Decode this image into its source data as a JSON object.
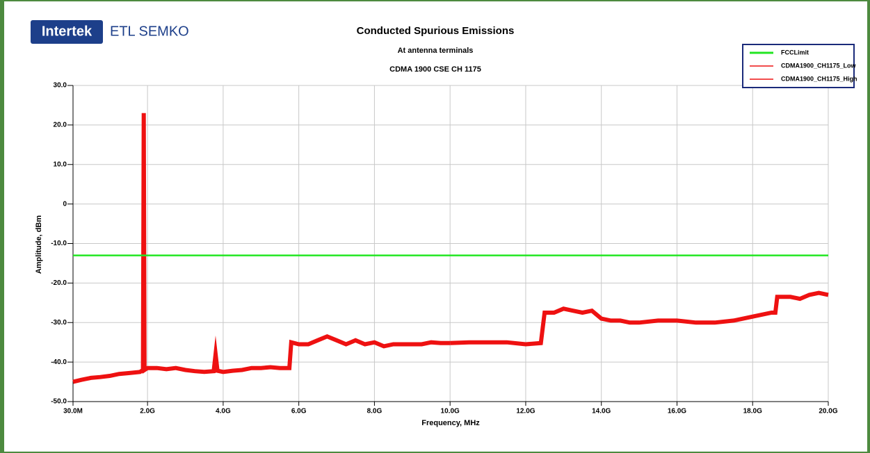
{
  "logo": {
    "brand": "Intertek",
    "name": "ETL SEMKO"
  },
  "chart_data": {
    "type": "line",
    "title": "Conducted Spurious Emissions",
    "subtitle": "At antenna terminals",
    "subtitle2": "CDMA 1900 CSE CH 1175",
    "x_label": "Frequency, MHz",
    "y_label": "Amplitude, dBm",
    "xlim": [
      30,
      20000
    ],
    "ylim": [
      -50,
      30
    ],
    "xticks": [
      {
        "value": 30,
        "label": "30.0M"
      },
      {
        "value": 2000,
        "label": "2.0G"
      },
      {
        "value": 4000,
        "label": "4.0G"
      },
      {
        "value": 6000,
        "label": "6.0G"
      },
      {
        "value": 8000,
        "label": "8.0G"
      },
      {
        "value": 10000,
        "label": "10.0G"
      },
      {
        "value": 12000,
        "label": "12.0G"
      },
      {
        "value": 14000,
        "label": "14.0G"
      },
      {
        "value": 16000,
        "label": "16.0G"
      },
      {
        "value": 18000,
        "label": "18.0G"
      },
      {
        "value": 20000,
        "label": "20.0G"
      }
    ],
    "yticks": [
      {
        "value": -50,
        "label": "-50.0"
      },
      {
        "value": -40,
        "label": "-40.0"
      },
      {
        "value": -30,
        "label": "-30.0"
      },
      {
        "value": -20,
        "label": "-20.0"
      },
      {
        "value": -10,
        "label": "-10.0"
      },
      0,
      {
        "value": 10,
        "label": "10.0"
      },
      {
        "value": 20,
        "label": "20.0"
      },
      {
        "value": 30,
        "label": "30.0"
      }
    ],
    "grid": true,
    "legend": "top-right",
    "series": [
      {
        "name": "FCCLimit",
        "color": "#22e622",
        "x": [
          30,
          20000
        ],
        "values": [
          -13,
          -13
        ]
      },
      {
        "name": "CDMA1900_CH1175_Low",
        "color": "#ee1111",
        "x": [
          30,
          250,
          500,
          750,
          1000,
          1250,
          1500,
          1800,
          1880,
          1900,
          1920,
          2000,
          2250,
          2500,
          2750,
          3000,
          3250,
          3500,
          3750,
          3800,
          3850,
          4000,
          4250,
          4500,
          4750,
          5000,
          5250,
          5500,
          5750,
          5800,
          6000,
          6250,
          6500,
          6750,
          7000,
          7250,
          7500,
          7750,
          8000,
          8250,
          8500,
          8750,
          9000,
          9250,
          9500,
          9750,
          10000
        ],
        "values": [
          -45,
          -44.5,
          -44,
          -43.8,
          -43.5,
          -43,
          -42.8,
          -42.5,
          -42,
          23,
          -42,
          -41.5,
          -41.5,
          -41.8,
          -41.5,
          -42,
          -42.3,
          -42.5,
          -42.3,
          -38,
          -42.2,
          -42.5,
          -42.2,
          -42,
          -41.5,
          -41.5,
          -41.3,
          -41.5,
          -41.5,
          -35,
          -35.5,
          -35.5,
          -34.5,
          -33.5,
          -34.5,
          -35.5,
          -34.5,
          -35.5,
          -35,
          -36,
          -35.5,
          -35.5,
          -35.5,
          -35.5,
          -35,
          -35.2,
          -35.2
        ]
      },
      {
        "name": "CDMA1900_CH1175_High",
        "color": "#ee1111",
        "x": [
          10000,
          10500,
          11000,
          11500,
          12000,
          12400,
          12500,
          12750,
          13000,
          13250,
          13500,
          13750,
          14000,
          14250,
          14500,
          14750,
          15000,
          15500,
          16000,
          16500,
          17000,
          17500,
          18000,
          18500,
          18600,
          18650,
          19000,
          19250,
          19500,
          19750,
          20000
        ],
        "values": [
          -35.2,
          -35,
          -35,
          -35,
          -35.5,
          -35.2,
          -27.5,
          -27.5,
          -26.5,
          -27,
          -27.5,
          -27,
          -29,
          -29.5,
          -29.5,
          -30,
          -30,
          -29.5,
          -29.5,
          -30,
          -30,
          -29.5,
          -28.5,
          -27.5,
          -27.5,
          -23.5,
          -23.5,
          -24,
          -23,
          -22.5,
          -23
        ]
      }
    ]
  }
}
